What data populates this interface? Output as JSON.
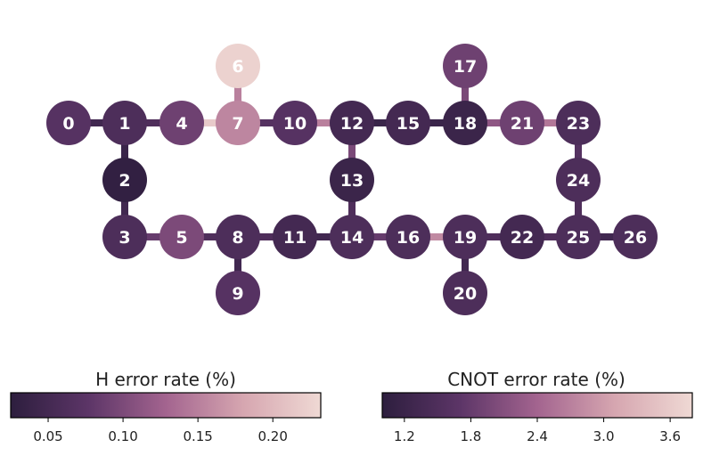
{
  "qubits": [
    {
      "id": "0",
      "h_error": 0.07
    },
    {
      "id": "1",
      "h_error": 0.06
    },
    {
      "id": "2",
      "h_error": 0.03
    },
    {
      "id": "3",
      "h_error": 0.06
    },
    {
      "id": "4",
      "h_error": 0.09
    },
    {
      "id": "5",
      "h_error": 0.1
    },
    {
      "id": "6",
      "h_error": 0.225
    },
    {
      "id": "7",
      "h_error": 0.155
    },
    {
      "id": "8",
      "h_error": 0.06
    },
    {
      "id": "9",
      "h_error": 0.07
    },
    {
      "id": "10",
      "h_error": 0.07
    },
    {
      "id": "11",
      "h_error": 0.05
    },
    {
      "id": "12",
      "h_error": 0.05
    },
    {
      "id": "13",
      "h_error": 0.04
    },
    {
      "id": "14",
      "h_error": 0.06
    },
    {
      "id": "15",
      "h_error": 0.05
    },
    {
      "id": "16",
      "h_error": 0.06
    },
    {
      "id": "17",
      "h_error": 0.09
    },
    {
      "id": "18",
      "h_error": 0.04
    },
    {
      "id": "19",
      "h_error": 0.06
    },
    {
      "id": "20",
      "h_error": 0.06
    },
    {
      "id": "21",
      "h_error": 0.09
    },
    {
      "id": "22",
      "h_error": 0.05
    },
    {
      "id": "23",
      "h_error": 0.06
    },
    {
      "id": "24",
      "h_error": 0.06
    },
    {
      "id": "25",
      "h_error": 0.06
    },
    {
      "id": "26",
      "h_error": 0.06
    }
  ],
  "couplings": [
    {
      "a": "0",
      "b": "1",
      "cnot_error": 1.3
    },
    {
      "a": "1",
      "b": "4",
      "cnot_error": 1.5
    },
    {
      "a": "4",
      "b": "7",
      "cnot_error": 3.6
    },
    {
      "a": "6",
      "b": "7",
      "cnot_error": 2.7
    },
    {
      "a": "7",
      "b": "10",
      "cnot_error": 1.6
    },
    {
      "a": "10",
      "b": "12",
      "cnot_error": 2.7
    },
    {
      "a": "12",
      "b": "15",
      "cnot_error": 1.2
    },
    {
      "a": "15",
      "b": "18",
      "cnot_error": 1.2
    },
    {
      "a": "17",
      "b": "18",
      "cnot_error": 2.0
    },
    {
      "a": "18",
      "b": "21",
      "cnot_error": 2.2
    },
    {
      "a": "21",
      "b": "23",
      "cnot_error": 2.6
    },
    {
      "a": "1",
      "b": "2",
      "cnot_error": 1.2
    },
    {
      "a": "2",
      "b": "3",
      "cnot_error": 1.3
    },
    {
      "a": "3",
      "b": "5",
      "cnot_error": 1.8
    },
    {
      "a": "5",
      "b": "8",
      "cnot_error": 1.5
    },
    {
      "a": "8",
      "b": "9",
      "cnot_error": 1.3
    },
    {
      "a": "8",
      "b": "11",
      "cnot_error": 1.5
    },
    {
      "a": "11",
      "b": "14",
      "cnot_error": 1.3
    },
    {
      "a": "12",
      "b": "13",
      "cnot_error": 2.0
    },
    {
      "a": "13",
      "b": "14",
      "cnot_error": 1.5
    },
    {
      "a": "14",
      "b": "16",
      "cnot_error": 1.8
    },
    {
      "a": "16",
      "b": "19",
      "cnot_error": 2.8
    },
    {
      "a": "19",
      "b": "20",
      "cnot_error": 1.3
    },
    {
      "a": "19",
      "b": "22",
      "cnot_error": 1.5
    },
    {
      "a": "22",
      "b": "25",
      "cnot_error": 1.5
    },
    {
      "a": "23",
      "b": "24",
      "cnot_error": 1.6
    },
    {
      "a": "24",
      "b": "25",
      "cnot_error": 1.5
    },
    {
      "a": "25",
      "b": "26",
      "cnot_error": 1.3
    }
  ],
  "colorbars": {
    "h": {
      "title": "H error rate (%)",
      "min": 0.025,
      "max": 0.232,
      "ticks": [
        0.05,
        0.1,
        0.15,
        0.2
      ],
      "tick_labels": [
        "0.05",
        "0.10",
        "0.15",
        "0.20"
      ]
    },
    "cnot": {
      "title": "CNOT error rate (%)",
      "min": 1.0,
      "max": 3.8,
      "ticks": [
        1.2,
        1.8,
        2.4,
        3.0,
        3.6
      ],
      "tick_labels": [
        "1.2",
        "1.8",
        "2.4",
        "3.0",
        "3.6"
      ]
    }
  },
  "colormap": [
    "#2d1e3e",
    "#5c3567",
    "#a3648f",
    "#d6a6b0",
    "#efd9d4"
  ]
}
